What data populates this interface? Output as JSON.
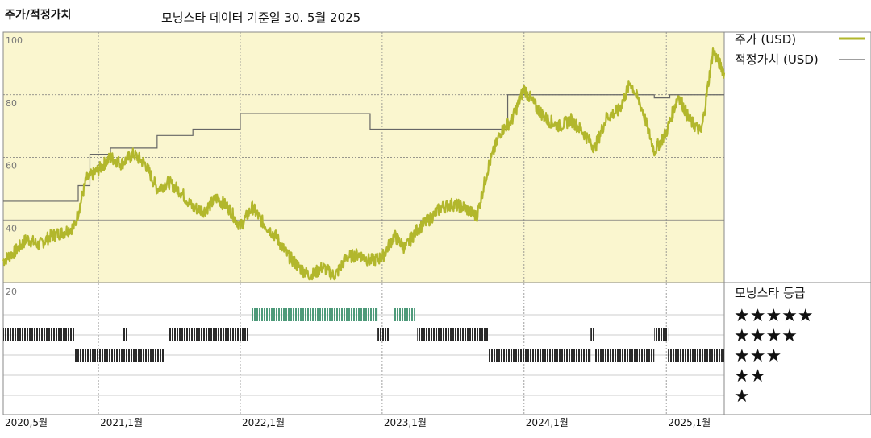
{
  "header": {
    "title": "주가/적정가치",
    "subtitle": "모닝스타 데이터 기준일 30. 5월 2025"
  },
  "legend": {
    "price_label": "주가 (USD)",
    "fair_label": "적정가치 (USD)",
    "rating_title": "모닝스타 등급"
  },
  "colors": {
    "price": "#b2b72c",
    "fair": "#666666",
    "plot_bg": "#faf6cf",
    "five_star": "#4e9a7a",
    "rating_bar": "#2a2a2a"
  },
  "chart_data": [
    {
      "type": "line",
      "title": "주가/적정가치",
      "y_ticks": [
        20,
        40,
        60,
        80,
        100
      ],
      "ylim": [
        20,
        100
      ],
      "x_ticks": [
        "2020,5월",
        "2021,1월",
        "2022,1월",
        "2023,1월",
        "2024,1월",
        "2025,1월"
      ],
      "xlim": [
        "2020-05-01",
        "2025-05-30"
      ],
      "grid": true,
      "legend_position": "top-right",
      "series": [
        {
          "name": "주가 (USD)",
          "points": [
            [
              "2020-05-01",
              27
            ],
            [
              "2020-06-01",
              30
            ],
            [
              "2020-07-01",
              34
            ],
            [
              "2020-08-01",
              32
            ],
            [
              "2020-09-01",
              35
            ],
            [
              "2020-10-01",
              36
            ],
            [
              "2020-11-01",
              38
            ],
            [
              "2020-12-01",
              53
            ],
            [
              "2021-01-01",
              56
            ],
            [
              "2021-02-01",
              60
            ],
            [
              "2021-03-01",
              58
            ],
            [
              "2021-04-01",
              61
            ],
            [
              "2021-05-01",
              58
            ],
            [
              "2021-06-01",
              50
            ],
            [
              "2021-07-01",
              52
            ],
            [
              "2021-08-01",
              49
            ],
            [
              "2021-09-01",
              44
            ],
            [
              "2021-10-01",
              43
            ],
            [
              "2021-11-01",
              47
            ],
            [
              "2021-12-01",
              44
            ],
            [
              "2022-01-01",
              38
            ],
            [
              "2022-02-01",
              44
            ],
            [
              "2022-03-01",
              39
            ],
            [
              "2022-04-01",
              35
            ],
            [
              "2022-05-01",
              29
            ],
            [
              "2022-06-01",
              25
            ],
            [
              "2022-07-01",
              22
            ],
            [
              "2022-08-01",
              25
            ],
            [
              "2022-09-01",
              22
            ],
            [
              "2022-10-01",
              28
            ],
            [
              "2022-11-01",
              29
            ],
            [
              "2022-12-01",
              27
            ],
            [
              "2023-01-01",
              28
            ],
            [
              "2023-02-01",
              35
            ],
            [
              "2023-03-01",
              31
            ],
            [
              "2023-04-01",
              37
            ],
            [
              "2023-05-01",
              40
            ],
            [
              "2023-06-01",
              44
            ],
            [
              "2023-07-01",
              45
            ],
            [
              "2023-08-01",
              44
            ],
            [
              "2023-09-01",
              41
            ],
            [
              "2023-10-01",
              57
            ],
            [
              "2023-11-01",
              68
            ],
            [
              "2023-12-01",
              72
            ],
            [
              "2024-01-01",
              82
            ],
            [
              "2024-02-01",
              76
            ],
            [
              "2024-03-01",
              72
            ],
            [
              "2024-04-01",
              70
            ],
            [
              "2024-05-01",
              72
            ],
            [
              "2024-06-01",
              68
            ],
            [
              "2024-07-01",
              63
            ],
            [
              "2024-08-01",
              73
            ],
            [
              "2024-09-01",
              75
            ],
            [
              "2024-10-01",
              84
            ],
            [
              "2024-11-01",
              75
            ],
            [
              "2024-12-01",
              62
            ],
            [
              "2025-01-01",
              68
            ],
            [
              "2025-02-01",
              80
            ],
            [
              "2025-03-01",
              72
            ],
            [
              "2025-04-01",
              68
            ],
            [
              "2025-05-01",
              94
            ],
            [
              "2025-05-30",
              87
            ]
          ]
        },
        {
          "name": "적정가치 (USD)",
          "step": true,
          "points": [
            [
              "2020-05-01",
              46
            ],
            [
              "2020-11-10",
              51
            ],
            [
              "2020-12-10",
              61
            ],
            [
              "2021-02-01",
              63
            ],
            [
              "2021-06-01",
              67
            ],
            [
              "2021-09-01",
              69
            ],
            [
              "2022-01-01",
              74
            ],
            [
              "2022-12-01",
              69
            ],
            [
              "2023-11-10",
              69
            ],
            [
              "2023-11-20",
              80
            ],
            [
              "2024-12-01",
              79
            ],
            [
              "2025-01-10",
              80
            ],
            [
              "2025-05-30",
              80
            ]
          ]
        }
      ]
    },
    {
      "type": "bar",
      "title": "모닝스타 등급",
      "categories": [
        "★★★★★",
        "★★★★",
        "★★★",
        "★★",
        "★"
      ],
      "segments": [
        {
          "stars": 4,
          "start": "2020-05-01",
          "end": "2020-11-01"
        },
        {
          "stars": 3,
          "start": "2020-11-01",
          "end": "2021-05-01"
        },
        {
          "stars": 3,
          "start": "2021-05-01",
          "end": "2021-06-20"
        },
        {
          "stars": 4,
          "start": "2021-03-05",
          "end": "2021-03-15"
        },
        {
          "stars": 4,
          "start": "2021-07-01",
          "end": "2022-01-20"
        },
        {
          "stars": 5,
          "start": "2022-02-01",
          "end": "2022-12-20"
        },
        {
          "stars": 4,
          "start": "2022-12-20",
          "end": "2023-01-20"
        },
        {
          "stars": 5,
          "start": "2023-02-01",
          "end": "2023-03-25"
        },
        {
          "stars": 4,
          "start": "2023-04-01",
          "end": "2023-10-01"
        },
        {
          "stars": 3,
          "start": "2023-10-01",
          "end": "2024-06-20"
        },
        {
          "stars": 4,
          "start": "2024-06-20",
          "end": "2024-07-01"
        },
        {
          "stars": 3,
          "start": "2024-07-01",
          "end": "2024-12-01"
        },
        {
          "stars": 4,
          "start": "2024-12-01",
          "end": "2025-01-05"
        },
        {
          "stars": 3,
          "start": "2025-01-05",
          "end": "2025-05-30"
        }
      ]
    }
  ]
}
